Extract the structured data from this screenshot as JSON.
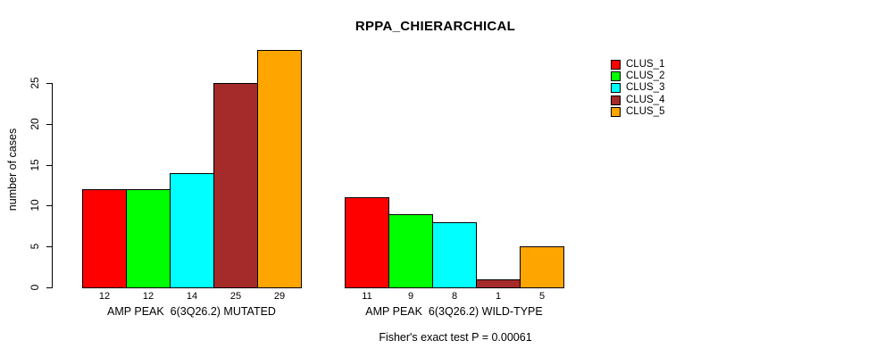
{
  "chart_data": {
    "type": "bar",
    "title": "RPPA_CHIERARCHICAL",
    "ylabel": "number of cases",
    "xlabel": "",
    "ylim": [
      0,
      29
    ],
    "yticks": [
      0,
      5,
      10,
      15,
      20,
      25
    ],
    "grid": false,
    "legend_position": "top-right",
    "categories": [
      "AMP PEAK  6(3Q26.2) MUTATED",
      "AMP PEAK  6(3Q26.2) WILD-TYPE"
    ],
    "series": [
      {
        "name": "CLUS_1",
        "color": "#FF0000",
        "values": [
          12,
          11
        ]
      },
      {
        "name": "CLUS_2",
        "color": "#00FF00",
        "values": [
          12,
          9
        ]
      },
      {
        "name": "CLUS_3",
        "color": "#00FFFF",
        "values": [
          14,
          8
        ]
      },
      {
        "name": "CLUS_4",
        "color": "#A52A2A",
        "values": [
          25,
          1
        ]
      },
      {
        "name": "CLUS_5",
        "color": "#FFA500",
        "values": [
          29,
          5
        ]
      }
    ],
    "bar_value_labels_shown": true,
    "bar_border_color": "#000000",
    "background_color": "#FFFFFF",
    "annotation": "Fisher's exact test P = 0.00061"
  }
}
